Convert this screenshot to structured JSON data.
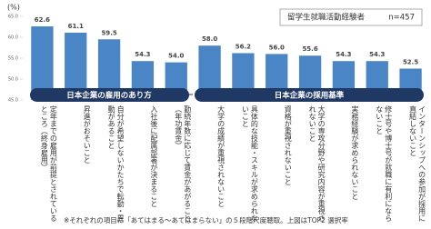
{
  "chart_data": {
    "type": "bar",
    "y_label": "(%)",
    "series": [
      {
        "name": "留学生就職活動経験者",
        "color": "#4a86c5",
        "values": [
          62.6,
          61.1,
          59.5,
          54.3,
          54.0,
          58.0,
          56.2,
          56.0,
          55.6,
          54.3,
          54.3,
          52.5
        ],
        "value_labels": [
          "62.6",
          "61.1",
          "59.5",
          "54.3",
          "54.0",
          "58.0",
          "56.2",
          "56.0",
          "55.6",
          "54.3",
          "54.3",
          "52.5"
        ]
      }
    ],
    "sample_size": "n=457",
    "categories": [
      "定年までの雇用が前提とされているところ（終身雇用）",
      "昇進がおそいこと",
      "自分が希望しないかたちで転勤・異動があること",
      "入社後に配属部署が決まること",
      "勤続年数に応じて賃金があがること（年功賃金）",
      "大学の成績が重視されないこと",
      "具体的な技能・スキルが求められないこと",
      "資格が重視されないこと",
      "大学の専攻分野や研究内容が重視されないこと",
      "実務経験が求められないこと",
      "修士号や博士号が就職に有利にならないこと",
      "インターンシップへの参加が採用に直結しないこと"
    ],
    "annotations": [
      "日本企業の雇用のあり方",
      "日本企業の採用基準"
    ],
    "note": "※それぞれの項目に「あてはまる～あてはまらない」の５段階尺度聴取。上図はTOP2 選択率",
    "ylim": [
      45,
      65
    ],
    "yticks": [
      {
        "value": 45,
        "label": "45.0"
      },
      {
        "value": 50,
        "label": "50.0"
      },
      {
        "value": 55,
        "label": "55.0"
      },
      {
        "value": 60,
        "label": "60.0"
      },
      {
        "value": 65,
        "label": "65.0"
      }
    ],
    "grid": false
  }
}
